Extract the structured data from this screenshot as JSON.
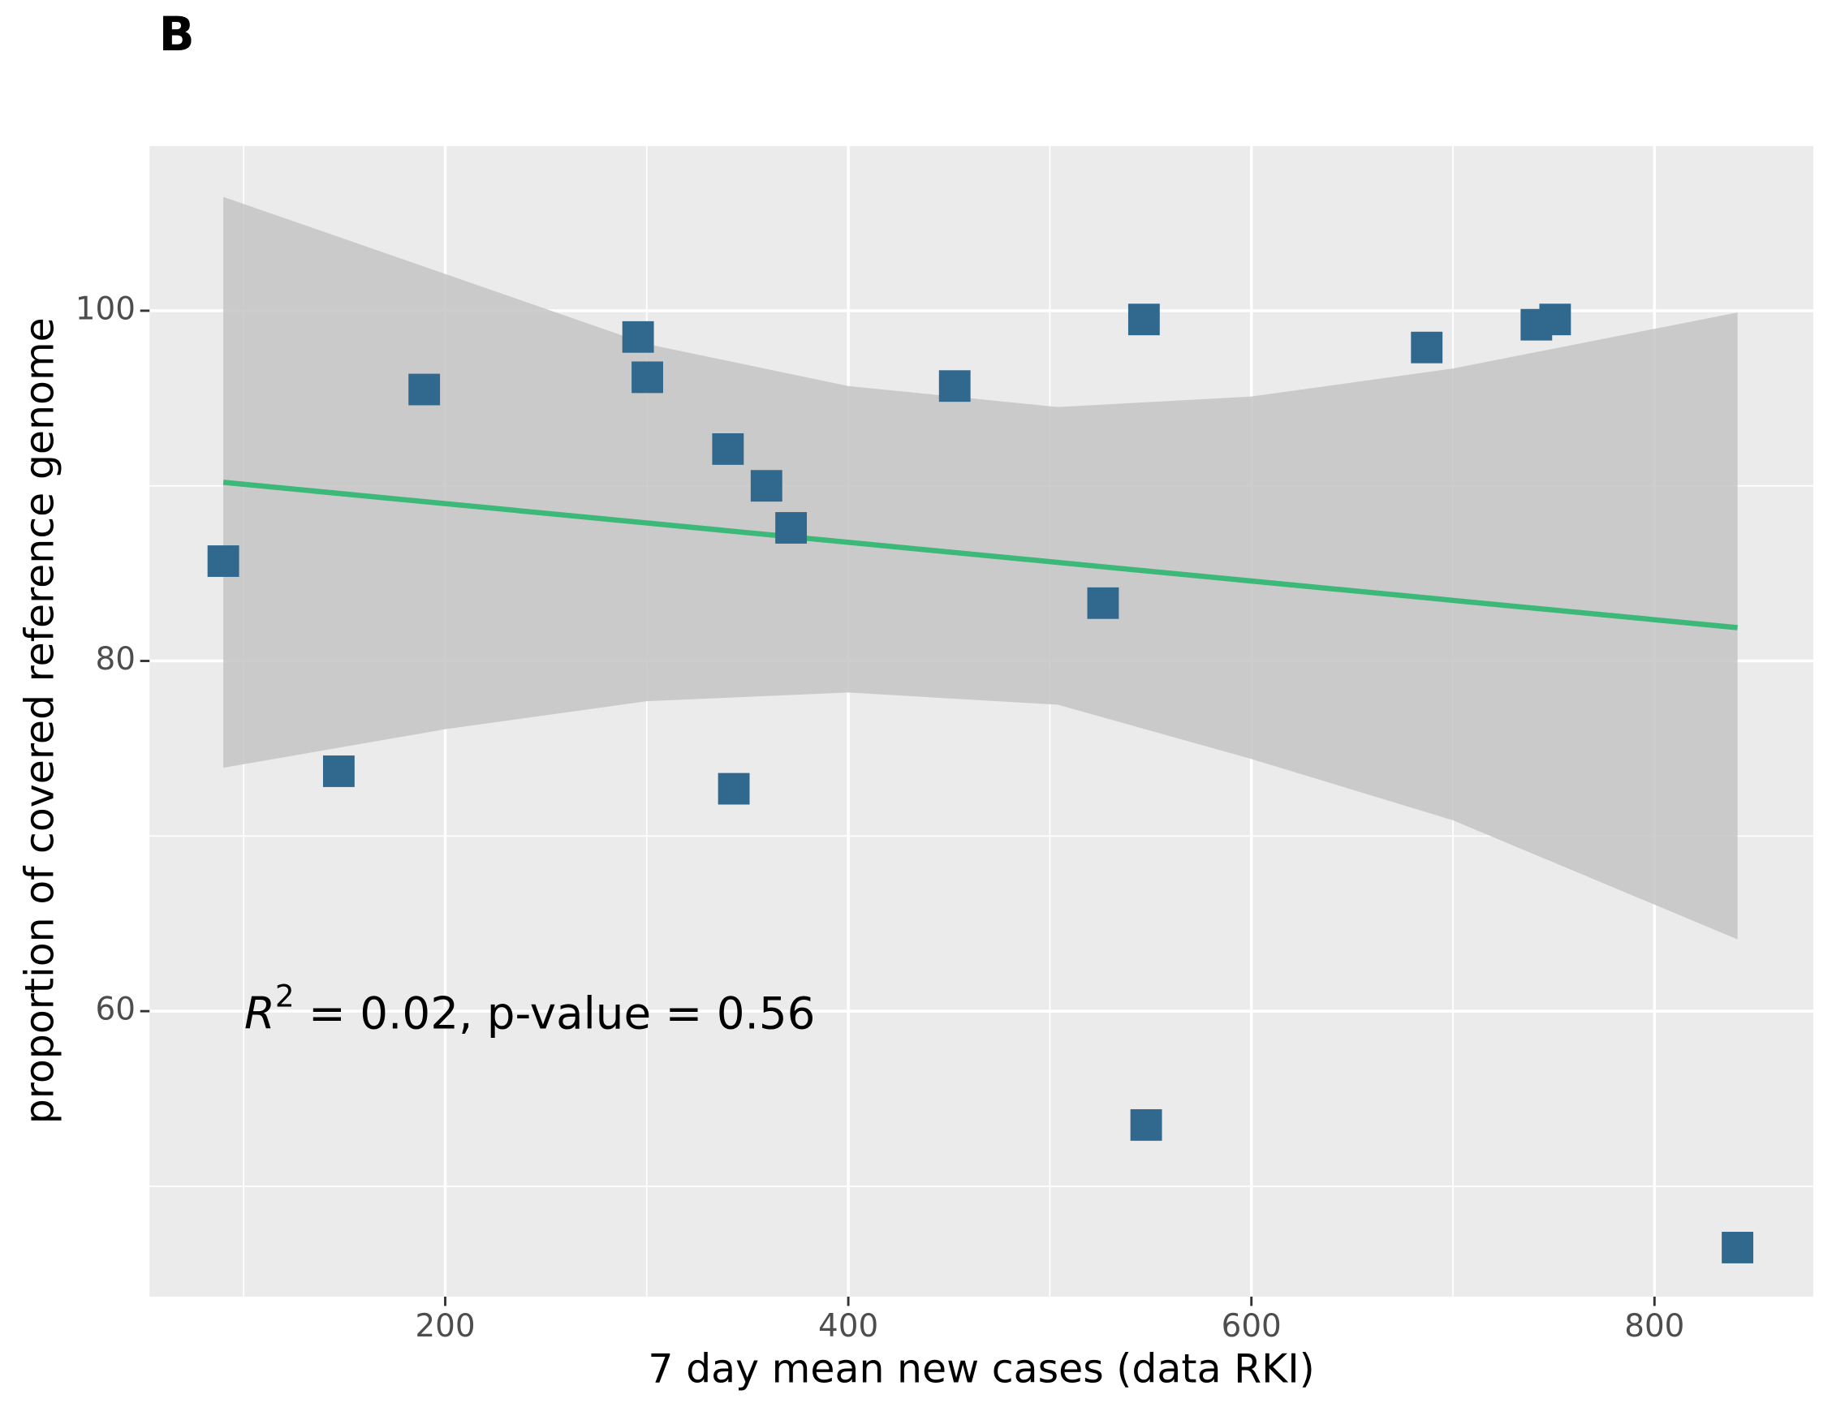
{
  "chart_data": {
    "type": "scatter",
    "panel_label": "B",
    "xlabel": "7 day mean new cases (data RKI)",
    "ylabel": "proportion of covered reference genome",
    "annotation": {
      "r": "R",
      "sup": "2",
      "rest": " = 0.02, p-value = 0.56"
    },
    "x": [
      89.9,
      147.2,
      189.6,
      295.7,
      300.3,
      340.3,
      343.2,
      359.4,
      371.6,
      452.8,
      526.4,
      546.7,
      547.8,
      687.0,
      741.4,
      750.7,
      841.2
    ],
    "values": [
      85.7,
      73.7,
      95.5,
      98.5,
      96.2,
      92.1,
      72.7,
      90.0,
      87.6,
      95.7,
      83.3,
      99.5,
      53.5,
      97.9,
      99.2,
      99.5,
      46.5
    ],
    "color": "#31688e",
    "fit": {
      "x": [
        89.9,
        841.2
      ],
      "y": [
        90.2,
        81.9
      ],
      "color": "#3cb878"
    },
    "band": {
      "x": [
        89.9,
        200,
        300,
        400,
        504,
        600,
        700,
        841.2
      ],
      "upper": [
        106.5,
        102.1,
        98.1,
        95.7,
        94.5,
        95.1,
        96.7,
        99.9
      ],
      "lower": [
        73.9,
        76.1,
        77.7,
        78.2,
        77.5,
        74.4,
        70.9,
        64.1
      ],
      "color": "#c4c4c4"
    },
    "xlim": [
      53.3,
      878.8
    ],
    "ylim": [
      43.7,
      109.4
    ],
    "xticks": [
      200,
      400,
      600,
      800
    ],
    "yticks": [
      60,
      80,
      100
    ],
    "xminor": [
      100,
      300,
      500,
      700
    ],
    "yminor": [
      50,
      70,
      90
    ],
    "grid": true
  }
}
